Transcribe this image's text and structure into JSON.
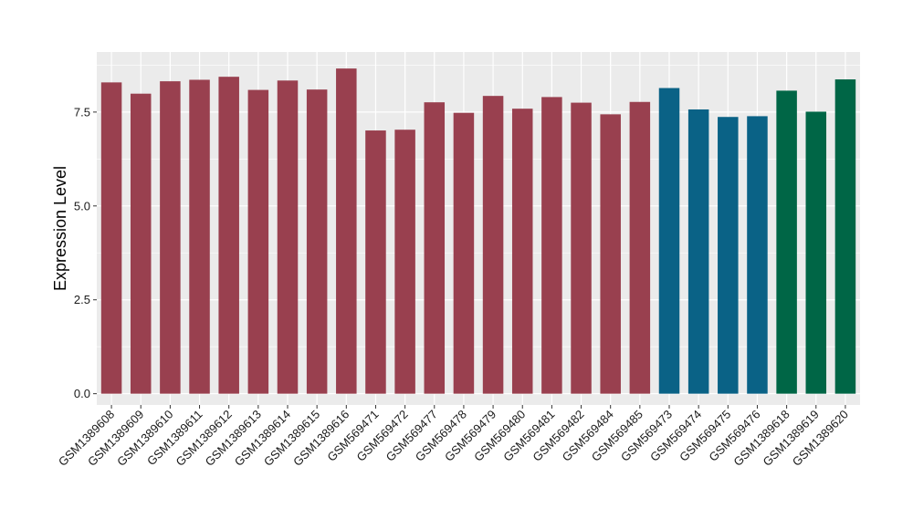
{
  "chart_data": {
    "type": "bar",
    "title": "",
    "xlabel": "",
    "ylabel": "Expression Level",
    "ylim": [
      -0.3,
      9.1
    ],
    "yticks": [
      0.0,
      2.5,
      5.0,
      7.5
    ],
    "ytick_labels": [
      "0.0",
      "2.5",
      "5.0",
      "7.5"
    ],
    "grid": true,
    "legend": "none",
    "background_color": "#EBEBEB",
    "grid_color": "#FFFFFF",
    "categories": [
      "GSM1389608",
      "GSM1389609",
      "GSM1389610",
      "GSM1389611",
      "GSM1389612",
      "GSM1389613",
      "GSM1389614",
      "GSM1389615",
      "GSM1389616",
      "GSM569471",
      "GSM569472",
      "GSM569477",
      "GSM569478",
      "GSM569479",
      "GSM569480",
      "GSM569481",
      "GSM569482",
      "GSM569484",
      "GSM569485",
      "GSM569473",
      "GSM569474",
      "GSM569475",
      "GSM569476",
      "GSM1389618",
      "GSM1389619",
      "GSM1389620"
    ],
    "values": [
      8.29,
      7.99,
      8.32,
      8.36,
      8.44,
      8.09,
      8.34,
      8.1,
      8.66,
      7.01,
      7.03,
      7.76,
      7.48,
      7.93,
      7.59,
      7.9,
      7.75,
      7.44,
      7.77,
      8.14,
      7.57,
      7.37,
      7.39,
      8.07,
      7.51,
      8.37
    ],
    "bar_colors": [
      "#99404F",
      "#99404F",
      "#99404F",
      "#99404F",
      "#99404F",
      "#99404F",
      "#99404F",
      "#99404F",
      "#99404F",
      "#99404F",
      "#99404F",
      "#99404F",
      "#99404F",
      "#99404F",
      "#99404F",
      "#99404F",
      "#99404F",
      "#99404F",
      "#99404F",
      "#0A6286",
      "#0A6286",
      "#0A6286",
      "#0A6286",
      "#006646",
      "#006646",
      "#006646"
    ]
  }
}
